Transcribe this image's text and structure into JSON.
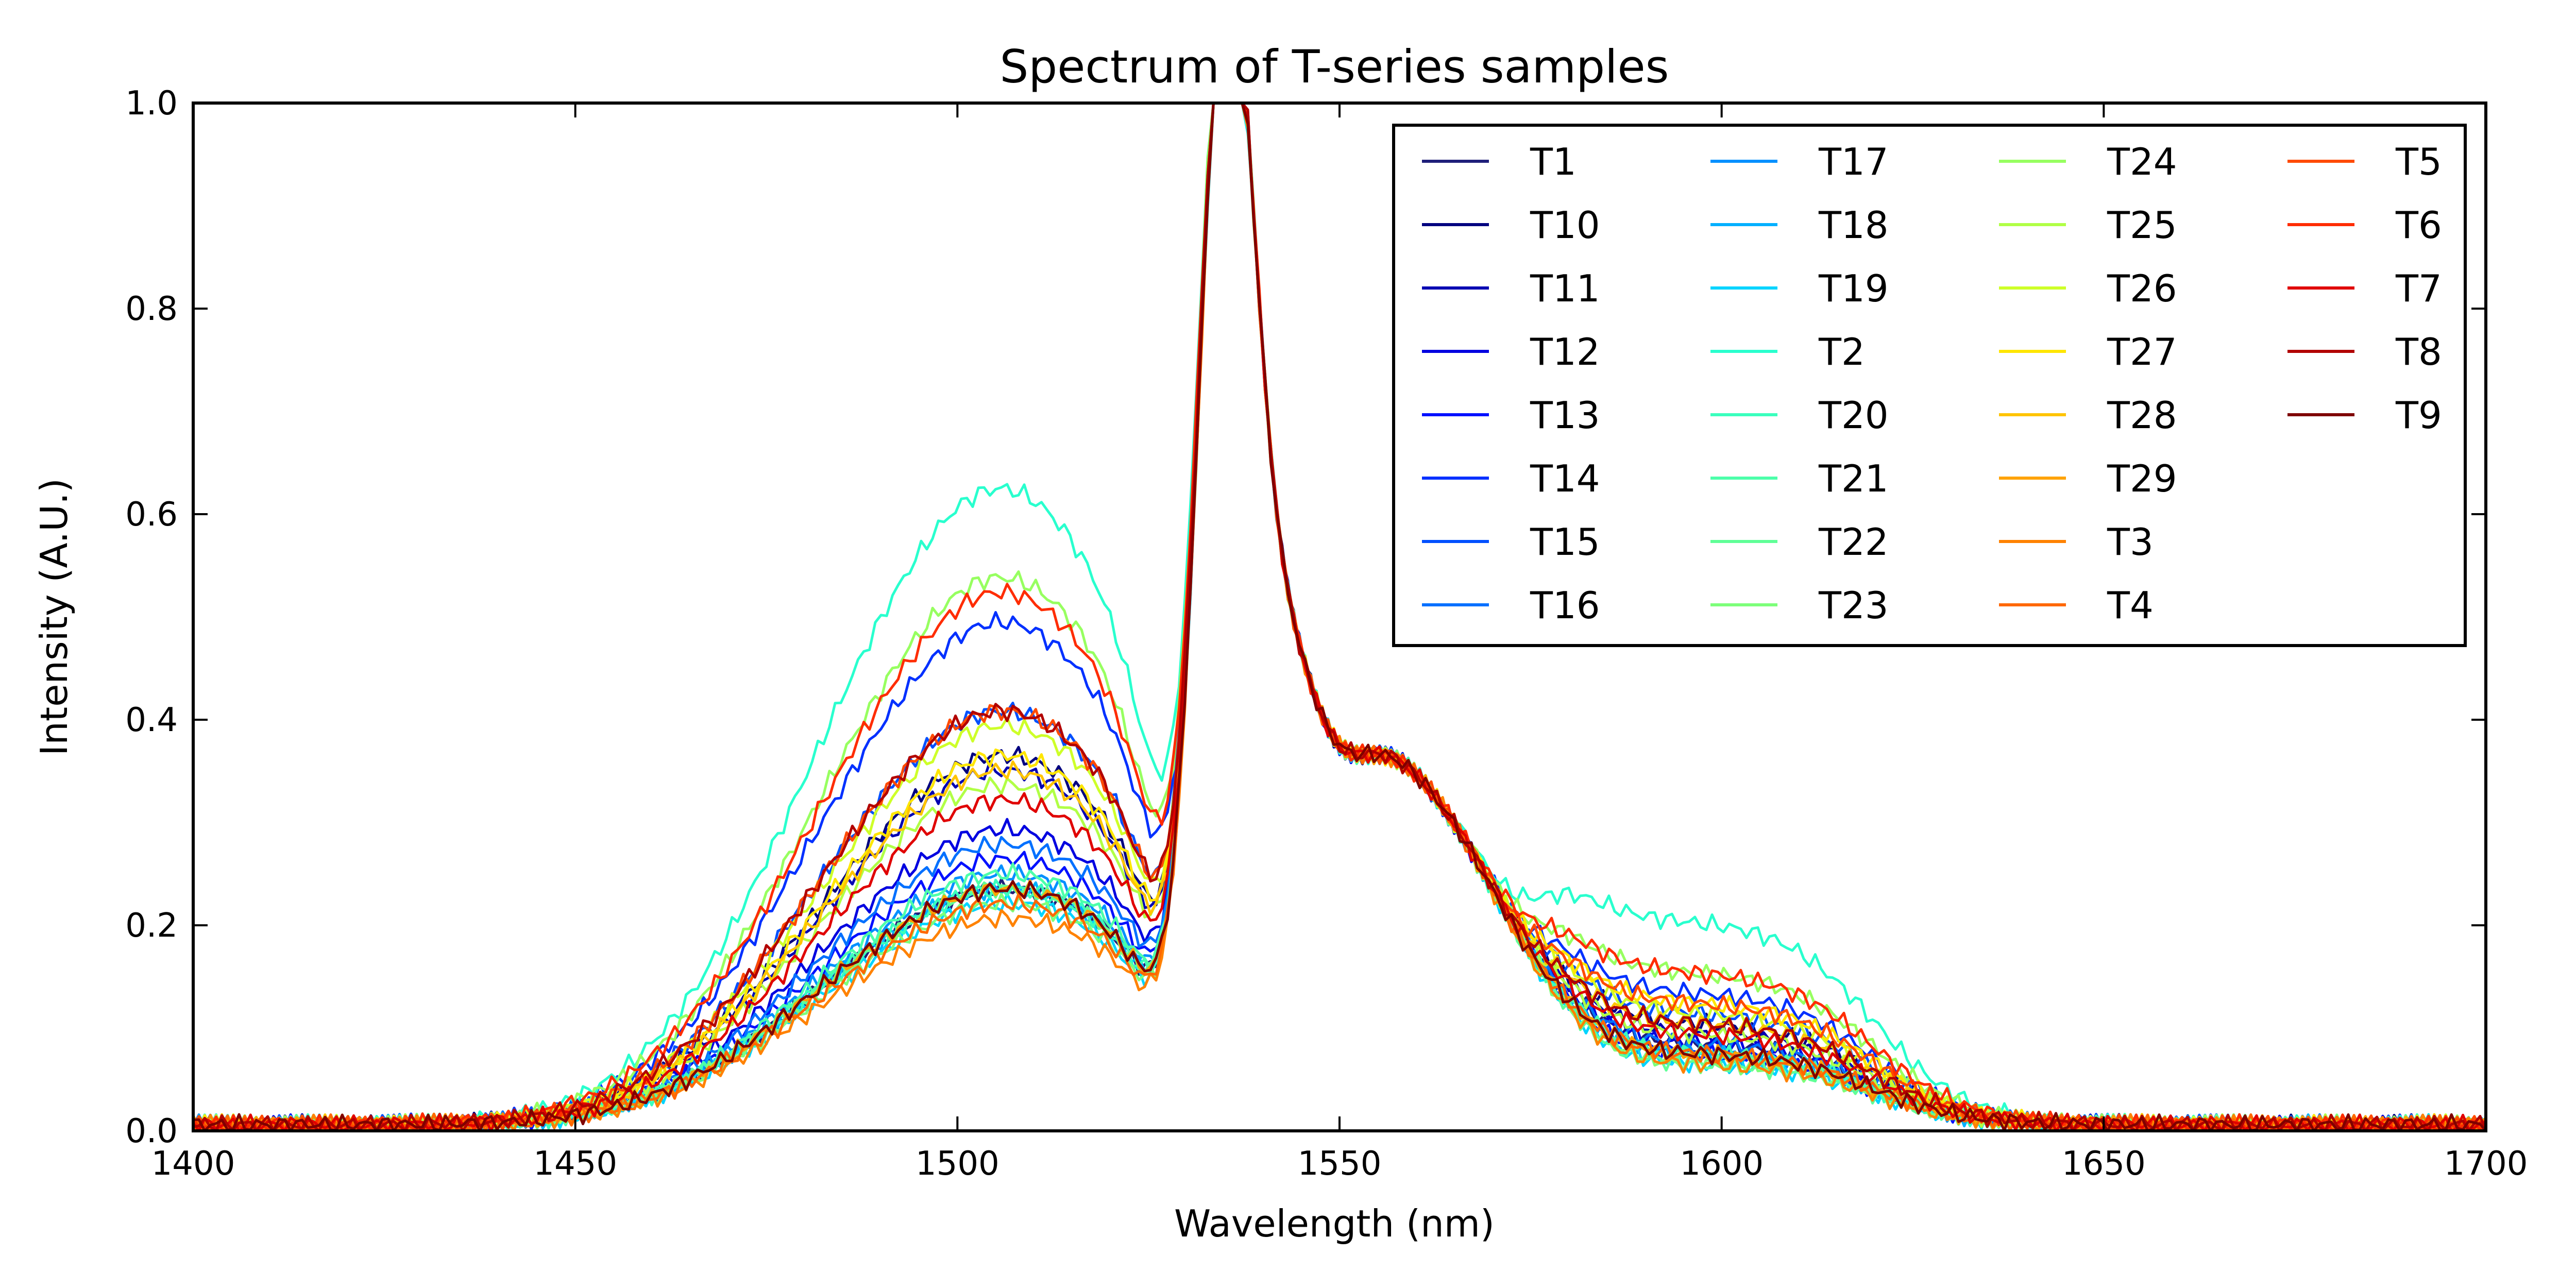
{
  "chart_data": {
    "type": "line",
    "title": "Spectrum of T-series samples",
    "xlabel": "Wavelength (nm)",
    "ylabel": "Intensity (A.U.)",
    "xlim": [
      1400,
      1700
    ],
    "ylim": [
      0,
      1.0
    ],
    "xticks": [
      "1400",
      "1450",
      "1500",
      "1550",
      "1600",
      "1650",
      "1700"
    ],
    "yticks": [
      "0.0",
      "0.2",
      "0.4",
      "0.6",
      "0.8",
      "1.0"
    ],
    "grid": false,
    "legend_position": "top-right",
    "legend_columns": 4,
    "series": [
      {
        "name": "T1",
        "color": "#1f1f7a",
        "shoulder": 0.15,
        "post": 0.08
      },
      {
        "name": "T10",
        "color": "#00007f",
        "shoulder": 0.24,
        "post": 0.1
      },
      {
        "name": "T11",
        "color": "#0000b2",
        "shoulder": 0.23,
        "post": 0.09
      },
      {
        "name": "T12",
        "color": "#0000e0",
        "shoulder": 0.19,
        "post": 0.08
      },
      {
        "name": "T13",
        "color": "#0010ff",
        "shoulder": 0.17,
        "post": 0.07
      },
      {
        "name": "T14",
        "color": "#0030ff",
        "shoulder": 0.33,
        "post": 0.13
      },
      {
        "name": "T15",
        "color": "#0050ff",
        "shoulder": 0.27,
        "post": 0.11
      },
      {
        "name": "T16",
        "color": "#0070ff",
        "shoulder": 0.18,
        "post": 0.08
      },
      {
        "name": "T17",
        "color": "#0090ff",
        "shoulder": 0.16,
        "post": 0.07
      },
      {
        "name": "T18",
        "color": "#00b0ff",
        "shoulder": 0.15,
        "post": 0.07
      },
      {
        "name": "T19",
        "color": "#00d4ff",
        "shoulder": 0.14,
        "post": 0.06
      },
      {
        "name": "T2",
        "color": "#29ffce",
        "shoulder": 0.42,
        "post": 0.2
      },
      {
        "name": "T20",
        "color": "#3affbd",
        "shoulder": 0.15,
        "post": 0.07
      },
      {
        "name": "T21",
        "color": "#4dffaa",
        "shoulder": 0.16,
        "post": 0.07
      },
      {
        "name": "T22",
        "color": "#60ff97",
        "shoulder": 0.15,
        "post": 0.06
      },
      {
        "name": "T23",
        "color": "#7dff7a",
        "shoulder": 0.14,
        "post": 0.06
      },
      {
        "name": "T24",
        "color": "#97ff60",
        "shoulder": 0.36,
        "post": 0.15
      },
      {
        "name": "T25",
        "color": "#b1ff46",
        "shoulder": 0.22,
        "post": 0.09
      },
      {
        "name": "T26",
        "color": "#ceff29",
        "shoulder": 0.26,
        "post": 0.11
      },
      {
        "name": "T27",
        "color": "#ffe600",
        "shoulder": 0.24,
        "post": 0.12
      },
      {
        "name": "T28",
        "color": "#ffc400",
        "shoulder": 0.23,
        "post": 0.1
      },
      {
        "name": "T29",
        "color": "#ffa300",
        "shoulder": 0.15,
        "post": 0.07
      },
      {
        "name": "T3",
        "color": "#ff8200",
        "shoulder": 0.13,
        "post": 0.06
      },
      {
        "name": "T4",
        "color": "#ff6800",
        "shoulder": 0.14,
        "post": 0.07
      },
      {
        "name": "T5",
        "color": "#ff4a00",
        "shoulder": 0.27,
        "post": 0.12
      },
      {
        "name": "T6",
        "color": "#ff2c00",
        "shoulder": 0.35,
        "post": 0.15
      },
      {
        "name": "T7",
        "color": "#e00000",
        "shoulder": 0.21,
        "post": 0.09
      },
      {
        "name": "T8",
        "color": "#b20000",
        "shoulder": 0.27,
        "post": 0.1
      },
      {
        "name": "T9",
        "color": "#7f0000",
        "shoulder": 0.15,
        "post": 0.07
      }
    ]
  }
}
